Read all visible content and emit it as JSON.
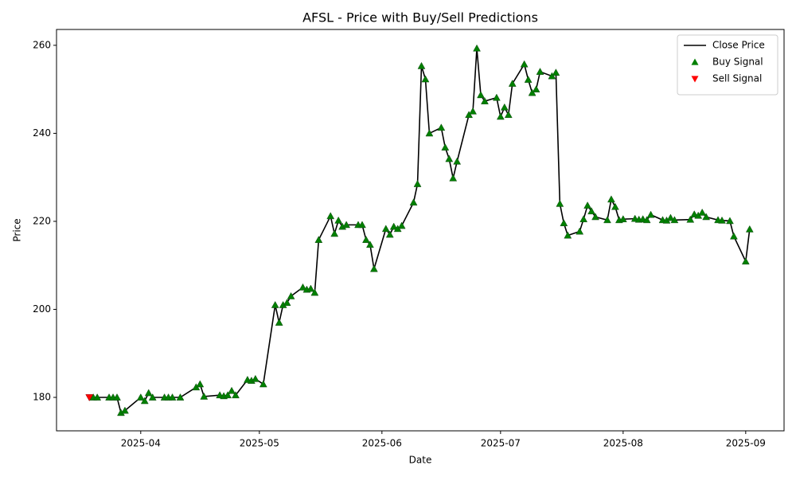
{
  "chart_data": {
    "type": "line",
    "title": "AFSL - Price with Buy/Sell Predictions",
    "x_label": "Date",
    "y_label": "Price",
    "xlim": [
      69.7,
      253.7
    ],
    "xticks": [
      {
        "value": 91,
        "label": "2025-04"
      },
      {
        "value": 121,
        "label": "2025-05"
      },
      {
        "value": 152,
        "label": "2025-06"
      },
      {
        "value": 182,
        "label": "2025-07"
      },
      {
        "value": 213,
        "label": "2025-08"
      },
      {
        "value": 244,
        "label": "2025-09"
      }
    ],
    "ylim": [
      172.4,
      263.6
    ],
    "yticks": [
      180,
      200,
      220,
      240,
      260
    ],
    "legend": "upper right",
    "series": [
      {
        "name": "Close Price",
        "color": "#000000",
        "kind": "line",
        "x": [
          78,
          79,
          80,
          83,
          84,
          85,
          86,
          87,
          91,
          92,
          93,
          94,
          97,
          98,
          99,
          101,
          105,
          106,
          107,
          111,
          112,
          113,
          114,
          115,
          118,
          119,
          120,
          122,
          125,
          126,
          127,
          128,
          129,
          132,
          133,
          134,
          135,
          136,
          139,
          140,
          141,
          142,
          143,
          146,
          147,
          148,
          149,
          150,
          153,
          154,
          155,
          156,
          157,
          160,
          161,
          162,
          163,
          164,
          167,
          168,
          169,
          170,
          171,
          174,
          175,
          176,
          177,
          178,
          181,
          182,
          183,
          184,
          185,
          188,
          189,
          190,
          191,
          192,
          195,
          196,
          197,
          198,
          199,
          202,
          203,
          204,
          205,
          206,
          209,
          210,
          211,
          212,
          213,
          216,
          217,
          218,
          219,
          220,
          223,
          224,
          225,
          226,
          230,
          231,
          232,
          233,
          234,
          237,
          238,
          240,
          241,
          244,
          245
        ],
        "values": [
          180,
          180,
          180,
          180,
          180,
          180,
          176.5,
          177,
          180,
          179.2,
          181,
          180,
          180,
          180,
          180,
          180,
          182.3,
          183,
          180.2,
          180.5,
          180.3,
          180.5,
          181.5,
          180.5,
          184,
          183.8,
          184.2,
          183,
          201,
          197,
          201,
          201.5,
          203,
          205,
          204.5,
          204.7,
          203.8,
          215.8,
          221.2,
          217.2,
          220.2,
          218.8,
          219.2,
          219.2,
          219.2,
          215.8,
          214.7,
          209.2,
          218.3,
          217,
          218.8,
          218.3,
          219,
          224.3,
          228.5,
          255.3,
          252.3,
          240,
          241.3,
          236.8,
          234.2,
          229.8,
          233.6,
          244.2,
          245,
          259.3,
          248.7,
          247.3,
          248.1,
          243.8,
          245.9,
          244.2,
          251.3,
          255.7,
          252.2,
          249.2,
          250,
          254,
          253,
          253.8,
          224,
          219.6,
          216.8,
          217.7,
          220.5,
          223.6,
          222.3,
          221,
          220.3,
          225,
          223.3,
          220.3,
          220.5,
          220.6,
          220.4,
          220.5,
          220.3,
          221.5,
          220.3,
          220.2,
          220.8,
          220.3,
          220.4,
          221.6,
          221.3,
          222,
          221,
          220.3,
          220.2,
          220.1,
          216.6,
          210.9,
          218.2
        ]
      },
      {
        "name": "Buy Signal",
        "color": "#008000",
        "kind": "buy",
        "x": [
          79,
          80,
          83,
          84,
          85,
          86,
          87,
          91,
          92,
          93,
          94,
          97,
          98,
          99,
          101,
          105,
          106,
          107,
          111,
          112,
          113,
          114,
          115,
          118,
          119,
          120,
          122,
          125,
          126,
          127,
          128,
          129,
          132,
          133,
          134,
          135,
          136,
          139,
          140,
          141,
          142,
          143,
          146,
          147,
          148,
          149,
          150,
          153,
          154,
          155,
          156,
          157,
          160,
          161,
          162,
          163,
          164,
          167,
          168,
          169,
          170,
          171,
          174,
          175,
          176,
          177,
          178,
          181,
          182,
          183,
          184,
          185,
          188,
          189,
          190,
          191,
          192,
          195,
          196,
          197,
          198,
          199,
          202,
          203,
          204,
          205,
          206,
          209,
          210,
          211,
          212,
          213,
          216,
          217,
          218,
          219,
          220,
          223,
          224,
          225,
          226,
          230,
          231,
          232,
          233,
          234,
          237,
          238,
          240,
          241,
          244,
          245
        ],
        "values": [
          180,
          180,
          180,
          180,
          180,
          176.5,
          177,
          180,
          179.2,
          181,
          180,
          180,
          180,
          180,
          180,
          182.3,
          183,
          180.2,
          180.5,
          180.3,
          180.5,
          181.5,
          180.5,
          184,
          183.8,
          184.2,
          183,
          201,
          197,
          201,
          201.5,
          203,
          205,
          204.5,
          204.7,
          203.8,
          215.8,
          221.2,
          217.2,
          220.2,
          218.8,
          219.2,
          219.2,
          219.2,
          215.8,
          214.7,
          209.2,
          218.3,
          217,
          218.8,
          218.3,
          219,
          224.3,
          228.5,
          255.3,
          252.3,
          240,
          241.3,
          236.8,
          234.2,
          229.8,
          233.6,
          244.2,
          245,
          259.3,
          248.7,
          247.3,
          248.1,
          243.8,
          245.9,
          244.2,
          251.3,
          255.7,
          252.2,
          249.2,
          250,
          254,
          253,
          253.8,
          224,
          219.6,
          216.8,
          217.7,
          220.5,
          223.6,
          222.3,
          221,
          220.3,
          225,
          223.3,
          220.3,
          220.5,
          220.6,
          220.4,
          220.5,
          220.3,
          221.5,
          220.3,
          220.2,
          220.8,
          220.3,
          220.4,
          221.6,
          221.3,
          222,
          221,
          220.3,
          220.2,
          220.1,
          216.6,
          210.9,
          218.2
        ]
      },
      {
        "name": "Sell Signal",
        "color": "#ff0000",
        "kind": "sell",
        "x": [
          78
        ],
        "values": [
          180
        ]
      }
    ]
  }
}
